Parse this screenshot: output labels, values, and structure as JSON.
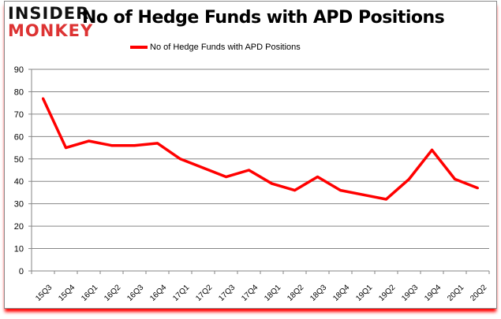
{
  "logo": {
    "line1": "INSIDER",
    "line2": "MONKEY"
  },
  "chart_data": {
    "type": "line",
    "title": "No of Hedge Funds with APD Positions",
    "categories": [
      "15Q3",
      "15Q4",
      "16Q1",
      "16Q2",
      "16Q3",
      "16Q4",
      "17Q1",
      "17Q2",
      "17Q3",
      "17Q4",
      "18Q1",
      "18Q2",
      "18Q3",
      "18Q4",
      "19Q1",
      "19Q2",
      "19Q3",
      "19Q4",
      "20Q1",
      "20Q2"
    ],
    "series": [
      {
        "name": "No of Hedge Funds with APD Positions",
        "values": [
          77,
          55,
          58,
          56,
          56,
          57,
          50,
          46,
          42,
          45,
          39,
          36,
          42,
          36,
          34,
          32,
          41,
          54,
          41,
          37
        ],
        "color": "#ff0000"
      }
    ],
    "ylim": [
      0,
      90
    ],
    "yticks": [
      0,
      10,
      20,
      30,
      40,
      50,
      60,
      70,
      80,
      90
    ],
    "grid": true,
    "legend": "top-center",
    "xlabel": "",
    "ylabel": ""
  }
}
